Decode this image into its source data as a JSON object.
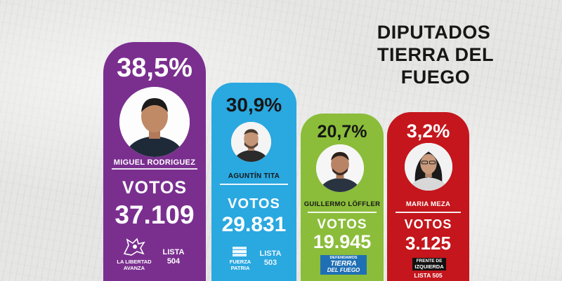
{
  "header": {
    "line1": "DIPUTADOS",
    "line2": "TIERRA DEL FUEGO"
  },
  "candidates": [
    {
      "percent": "38,5%",
      "name": "MIGUEL RODRIGUEZ",
      "votos_label": "VOTOS",
      "votes": "37.109",
      "party_line1": "LA LIBERTAD",
      "party_line2": "AVANZA",
      "lista_label": "LISTA",
      "lista_number": "504",
      "color": "#7a2f8f",
      "icon": "lion-logo-icon"
    },
    {
      "percent": "30,9%",
      "name": "AGUNTÍN TITA",
      "votos_label": "VOTOS",
      "votes": "29.831",
      "party_line1": "FUERZA",
      "party_line2": "PATRIA",
      "lista_label": "LISTA",
      "lista_number": "503",
      "color": "#2aa8e0",
      "icon": "flag-logo-icon"
    },
    {
      "percent": "20,7%",
      "name": "GUILLERMO LÖFFLER",
      "votos_label": "VOTOS",
      "votes": "19.945",
      "logo_line1": "DEFENDAMOS",
      "logo_line2": "TIERRA",
      "logo_line3": "DEL FUEGO",
      "color": "#8bbd3a",
      "icon": "defendamos-tdf-logo-icon"
    },
    {
      "percent": "3,2%",
      "name": "MARIA MEZA",
      "votos_label": "VOTOS",
      "votes": "3.125",
      "logo_line1": "FRENTE DE",
      "logo_line2": "IZQUIERDA",
      "lista_text": "LISTA 505",
      "color": "#c4161c",
      "icon": "frente-izquierda-logo-icon"
    }
  ]
}
